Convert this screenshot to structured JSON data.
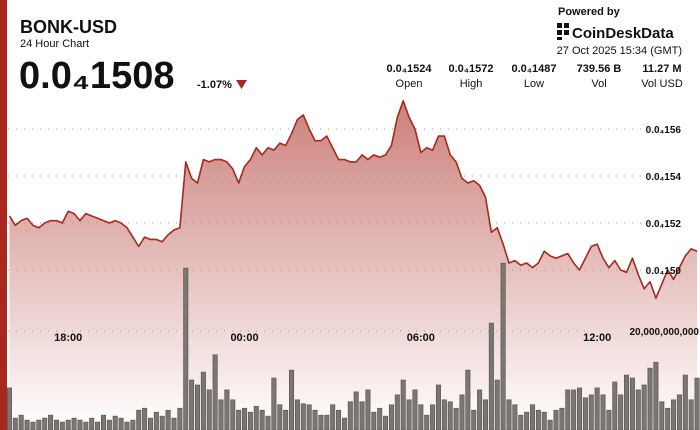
{
  "header": {
    "title": "BONK-USD",
    "subtitle": "24 Hour Chart",
    "price": "0.0₄1508",
    "change": "-1.07%",
    "powered": "Powered by",
    "brand": "CoinDeskData",
    "timestamp": "27 Oct 2025 15:34 (GMT)",
    "stats": [
      {
        "value": "0.0₄1524",
        "label": "Open"
      },
      {
        "value": "0.0₄1572",
        "label": "High"
      },
      {
        "value": "0.0₄1487",
        "label": "Low"
      },
      {
        "value": "739.56 B",
        "label": "Vol"
      },
      {
        "value": "11.27 M",
        "label": "Vol USD"
      }
    ]
  },
  "chart_data": {
    "type": "line",
    "categories": [
      null,
      null,
      null,
      null,
      null,
      null,
      null,
      null,
      null,
      null,
      "18:00",
      null,
      null,
      null,
      null,
      null,
      null,
      null,
      null,
      null,
      null,
      null,
      null,
      null,
      null,
      null,
      null,
      null,
      null,
      null,
      null,
      null,
      null,
      null,
      null,
      null,
      null,
      null,
      null,
      null,
      "00:00",
      null,
      null,
      null,
      null,
      null,
      null,
      null,
      null,
      null,
      null,
      null,
      null,
      null,
      null,
      null,
      null,
      null,
      null,
      null,
      null,
      null,
      null,
      null,
      null,
      null,
      null,
      null,
      null,
      null,
      "06:00",
      null,
      null,
      null,
      null,
      null,
      null,
      null,
      null,
      null,
      null,
      null,
      null,
      null,
      null,
      null,
      null,
      null,
      null,
      null,
      null,
      null,
      null,
      null,
      null,
      null,
      null,
      null,
      null,
      null,
      "12:00",
      null,
      null,
      null,
      null,
      null,
      null,
      null,
      null,
      null,
      null,
      null,
      null,
      null,
      null,
      null,
      null,
      null
    ],
    "series": [
      {
        "type": "line",
        "color": "#a8281e",
        "values": [
          1.523e-05,
          1.519e-05,
          1.521e-05,
          1.522e-05,
          1.519e-05,
          1.518e-05,
          1.52e-05,
          1.521e-05,
          1.521e-05,
          1.52e-05,
          1.525e-05,
          1.524e-05,
          1.521e-05,
          1.524e-05,
          1.523e-05,
          1.522e-05,
          1.521e-05,
          1.52e-05,
          1.521e-05,
          1.52e-05,
          1.518e-05,
          1.514e-05,
          1.51e-05,
          1.514e-05,
          1.513e-05,
          1.513e-05,
          1.512e-05,
          1.515e-05,
          1.517e-05,
          1.518e-05,
          1.546e-05,
          1.539e-05,
          1.537e-05,
          1.547e-05,
          1.546e-05,
          1.547e-05,
          1.547e-05,
          1.546e-05,
          1.543e-05,
          1.537e-05,
          1.544e-05,
          1.547e-05,
          1.552e-05,
          1.549e-05,
          1.552e-05,
          1.551e-05,
          1.554e-05,
          1.553e-05,
          1.558e-05,
          1.564e-05,
          1.566e-05,
          1.56e-05,
          1.555e-05,
          1.555e-05,
          1.557e-05,
          1.552e-05,
          1.547e-05,
          1.547e-05,
          1.546e-05,
          1.546e-05,
          1.549e-05,
          1.547e-05,
          1.549e-05,
          1.548e-05,
          1.549e-05,
          1.553e-05,
          1.565e-05,
          1.572e-05,
          1.565e-05,
          1.56e-05,
          1.55e-05,
          1.552e-05,
          1.551e-05,
          1.557e-05,
          1.557e-05,
          1.549e-05,
          1.546e-05,
          1.539e-05,
          1.537e-05,
          1.538e-05,
          1.536e-05,
          1.531e-05,
          1.516e-05,
          1.518e-05,
          1.511e-05,
          1.503e-05,
          1.504e-05,
          1.502e-05,
          1.503e-05,
          1.501e-05,
          1.503e-05,
          1.508e-05,
          1.506e-05,
          1.505e-05,
          1.506e-05,
          1.507e-05,
          1.503e-05,
          1.5e-05,
          1.505e-05,
          1.51e-05,
          1.511e-05,
          1.505e-05,
          1.501e-05,
          1.504e-05,
          1.5e-05,
          1.499e-05,
          1.505e-05,
          1.498e-05,
          1.492e-05,
          1.495e-05,
          1.488e-05,
          1.494e-05,
          1.5e-05,
          1.496e-05,
          1.501e-05,
          1.506e-05,
          1.509e-05,
          1.508e-05
        ]
      },
      {
        "type": "bar",
        "axis": "y2",
        "color": "#7a7672",
        "values": [
          8500000000,
          2400000000,
          3000000000,
          2000000000,
          1600000000,
          2000000000,
          2400000000,
          3000000000,
          2000000000,
          1600000000,
          2000000000,
          2400000000,
          2000000000,
          1600000000,
          2400000000,
          1600000000,
          3000000000,
          2000000000,
          2800000000,
          2400000000,
          1600000000,
          2000000000,
          4000000000,
          4400000000,
          2400000000,
          3600000000,
          2800000000,
          4000000000,
          2400000000,
          4400000000,
          32700000000,
          10100000000,
          9100000000,
          11700000000,
          8100000000,
          15200000000,
          6100000000,
          8100000000,
          6100000000,
          4000000000,
          4400000000,
          3600000000,
          4800000000,
          4000000000,
          2800000000,
          10500000000,
          5100000000,
          4000000000,
          12100000000,
          6100000000,
          5300000000,
          5100000000,
          4000000000,
          3000000000,
          3000000000,
          5100000000,
          4000000000,
          2400000000,
          5700000000,
          7700000000,
          5700000000,
          8100000000,
          3600000000,
          4400000000,
          2800000000,
          5100000000,
          7100000000,
          10100000000,
          6100000000,
          8100000000,
          5100000000,
          3000000000,
          5100000000,
          9100000000,
          6100000000,
          5700000000,
          4400000000,
          7100000000,
          12100000000,
          4000000000,
          8100000000,
          6100000000,
          21600000000,
          10100000000,
          33700000000,
          6100000000,
          5100000000,
          3000000000,
          3600000000,
          5100000000,
          4000000000,
          3600000000,
          2000000000,
          4000000000,
          4400000000,
          8100000000,
          8100000000,
          8500000000,
          6500000000,
          7100000000,
          8500000000,
          7100000000,
          4000000000,
          9700000000,
          7100000000,
          11100000000,
          10500000000,
          8100000000,
          9100000000,
          12500000000,
          13700000000,
          5700000000,
          4400000000,
          6100000000,
          7100000000,
          11100000000,
          6100000000,
          10500000000
        ]
      }
    ],
    "ylim": [
      1.432e-05,
      1.58e-05
    ],
    "yticks": [
      {
        "value": 1.56e-05,
        "label": "0.0₄156"
      },
      {
        "value": 1.54e-05,
        "label": "0.0₄154"
      },
      {
        "value": 1.52e-05,
        "label": "0.0₄152"
      },
      {
        "value": 1.5e-05,
        "label": "0.0₄150"
      }
    ],
    "y2lim": [
      0,
      40000000000
    ],
    "y2ticks": [
      {
        "value": 20000000000,
        "label": "20,000,000,000"
      }
    ],
    "grid": true
  }
}
